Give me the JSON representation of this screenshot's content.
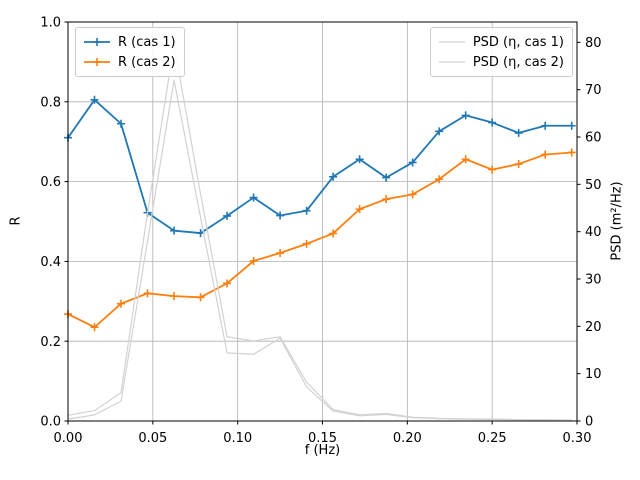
{
  "figure": {
    "background": "#ffffff",
    "grid_color": "#b0b0b0",
    "spine_color": "#000000",
    "legend_edge_color": "#cccccc"
  },
  "chart_data": {
    "type": "line",
    "title": "",
    "xlabel": "f (Hz)",
    "ylabel": "R",
    "ylabel2": "PSD (m²/Hz)",
    "xlim": [
      0,
      0.3
    ],
    "ylim_left": [
      0,
      1.0
    ],
    "ylim_right": [
      0,
      84.3
    ],
    "grid": true,
    "xticks": [
      0,
      0.05,
      0.1,
      0.15,
      0.2,
      0.25,
      0.3
    ],
    "xtick_labels": [
      "0.00",
      "0.05",
      "0.10",
      "0.15",
      "0.20",
      "0.25",
      "0.30"
    ],
    "yticks_left": [
      0,
      0.2,
      0.4,
      0.6,
      0.8,
      1.0
    ],
    "ytick_left_labels": [
      "0.0",
      "0.2",
      "0.4",
      "0.6",
      "0.8",
      "1.0"
    ],
    "yticks_right": [
      0,
      10,
      20,
      30,
      40,
      50,
      60,
      70,
      80
    ],
    "ytick_right_labels": [
      "0",
      "10",
      "20",
      "30",
      "40",
      "50",
      "60",
      "70",
      "80"
    ],
    "x": [
      0,
      0.015625,
      0.03125,
      0.046875,
      0.0625,
      0.078125,
      0.09375,
      0.109375,
      0.125,
      0.140625,
      0.15625,
      0.171875,
      0.1875,
      0.203125,
      0.21875,
      0.234375,
      0.25,
      0.265625,
      0.28125,
      0.296875
    ],
    "series": [
      {
        "name": "R (cas 1)",
        "axis": "left",
        "color": "#1f77b4",
        "marker": "plus",
        "line_width": 1.8,
        "values": [
          0.71,
          0.805,
          0.745,
          0.522,
          0.477,
          0.471,
          0.514,
          0.56,
          0.515,
          0.527,
          0.612,
          0.656,
          0.61,
          0.648,
          0.726,
          0.766,
          0.748,
          0.722,
          0.74,
          0.74
        ]
      },
      {
        "name": "R (cas 2)",
        "axis": "left",
        "color": "#ff7f0e",
        "marker": "plus",
        "line_width": 1.8,
        "values": [
          0.268,
          0.235,
          0.294,
          0.32,
          0.313,
          0.31,
          0.345,
          0.401,
          0.421,
          0.444,
          0.47,
          0.531,
          0.556,
          0.568,
          0.606,
          0.656,
          0.63,
          0.644,
          0.668,
          0.673
        ]
      },
      {
        "name": "PSD (η, cas 1)",
        "axis": "right",
        "color": "#d2d2d2",
        "marker": "none",
        "line_width": 1.2,
        "values": [
          1.2,
          2.2,
          6.0,
          44.0,
          79.5,
          48.0,
          17.8,
          16.9,
          17.8,
          8.2,
          2.4,
          1.3,
          1.6,
          0.8,
          0.55,
          0.45,
          0.4,
          0.3,
          0.25,
          0.2
        ]
      },
      {
        "name": "PSD (η, cas 2)",
        "axis": "right",
        "color": "#d2d2d2",
        "marker": "none",
        "line_width": 1.2,
        "values": [
          0.4,
          1.3,
          4.2,
          38.0,
          72.0,
          43.0,
          14.4,
          14.1,
          17.5,
          7.2,
          2.1,
          1.1,
          1.4,
          0.7,
          0.5,
          0.4,
          0.33,
          0.27,
          0.22,
          0.18
        ]
      }
    ],
    "legends": [
      {
        "position": "upper-left",
        "entries": [
          "R (cas 1)",
          "R (cas 2)"
        ]
      },
      {
        "position": "upper-right",
        "entries": [
          "PSD (η, cas 1)",
          "PSD (η, cas 2)"
        ]
      }
    ]
  }
}
